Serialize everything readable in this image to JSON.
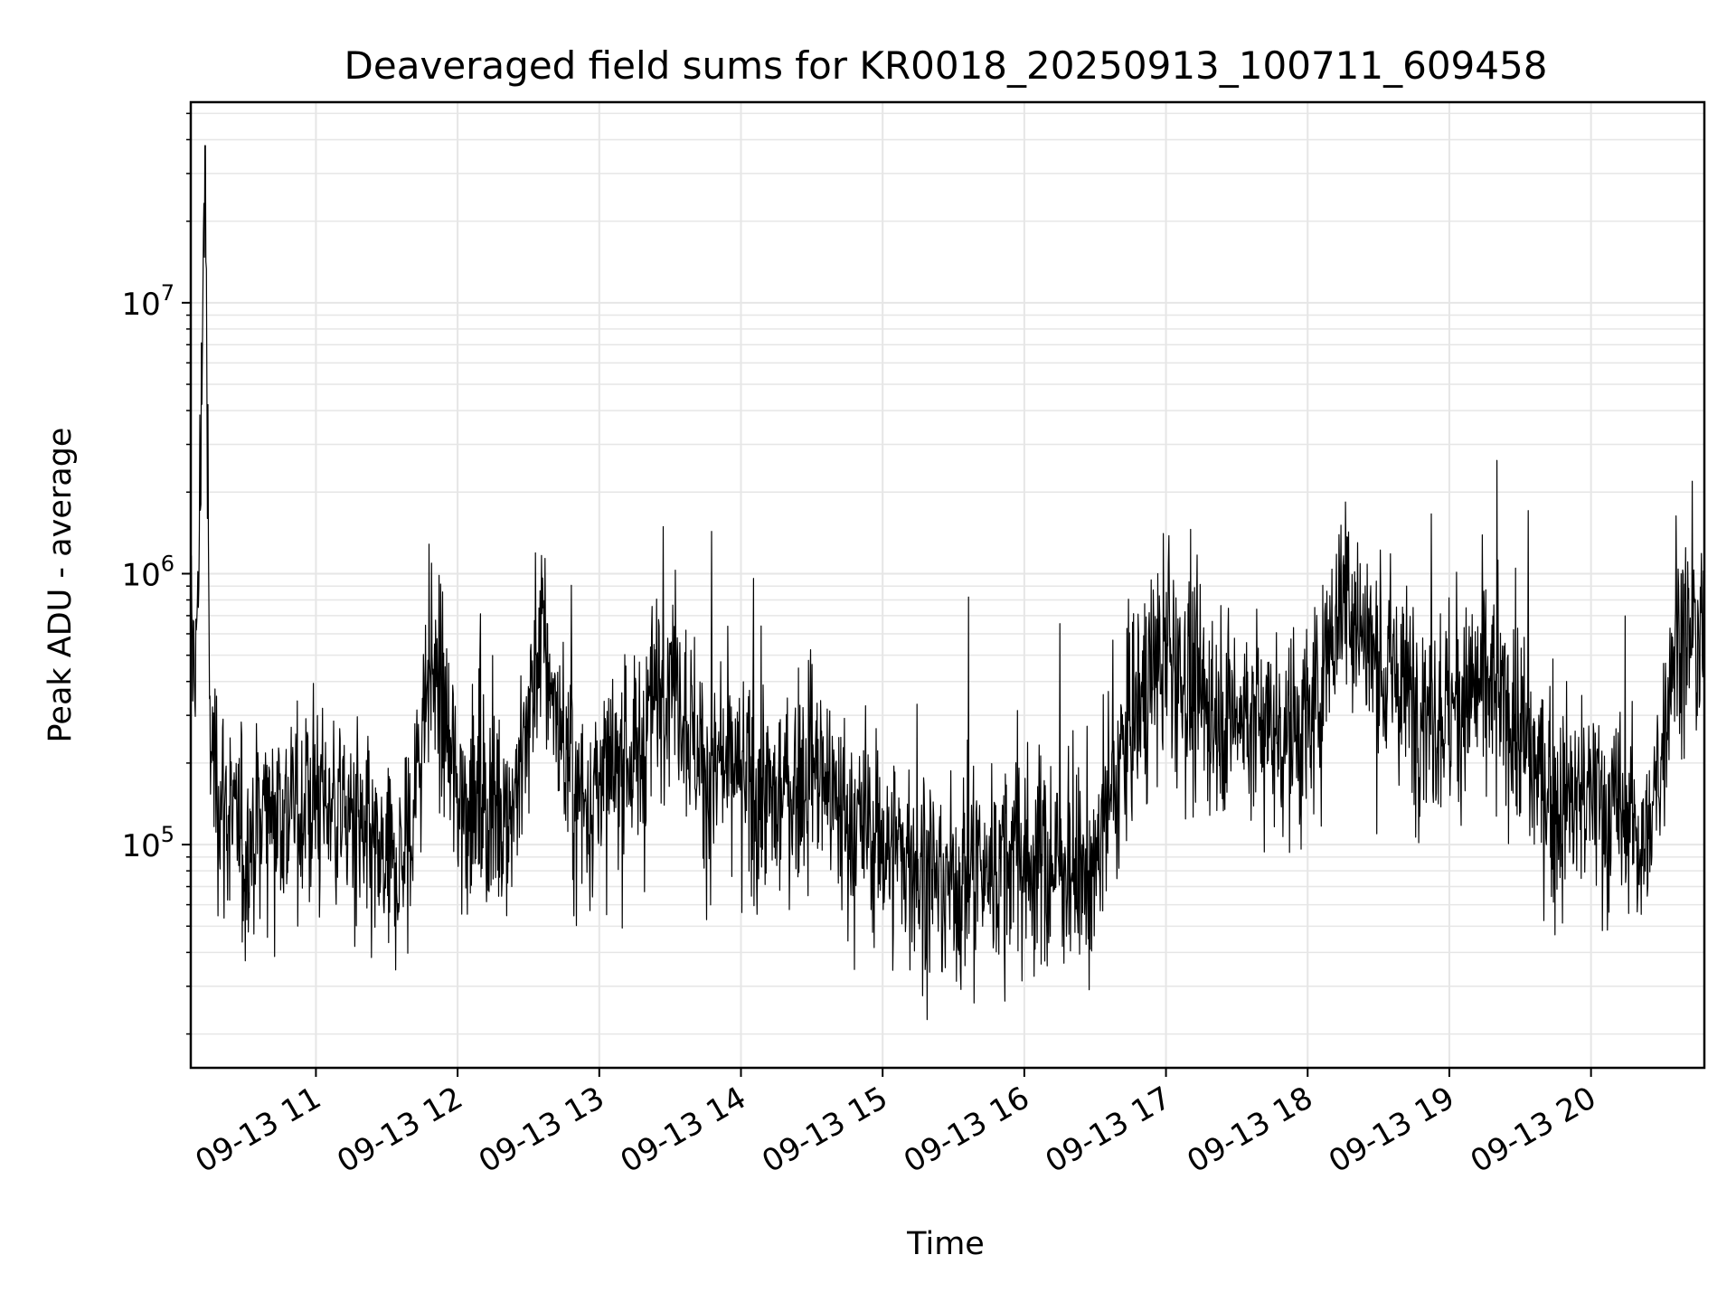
{
  "chart_data": {
    "type": "line",
    "title": "Deaveraged field sums for KR0018_20250913_100711_609458",
    "xlabel": "Time",
    "ylabel": "Peak ADU - average",
    "yscale": "log",
    "ylim": [
      15000,
      55000000
    ],
    "xlim": [
      "2025-09-13 10:07",
      "2025-09-13 20:48"
    ],
    "grid": "on (major and minor)",
    "legend": "none",
    "line_color": "#000000",
    "x_ticks": [
      "09-13 11",
      "09-13 12",
      "09-13 13",
      "09-13 14",
      "09-13 15",
      "09-13 16",
      "09-13 17",
      "09-13 18",
      "09-13 19",
      "09-13 20"
    ],
    "y_ticks": [
      {
        "value": 100000,
        "base": "10",
        "exp": "5"
      },
      {
        "value": 1000000,
        "base": "10",
        "exp": "6"
      },
      {
        "value": 10000000,
        "base": "10",
        "exp": "7"
      }
    ],
    "series": [
      {
        "x": [
          "2025-09-13 10:07",
          "2025-09-13 10:10",
          "2025-09-13 10:13",
          "2025-09-13 10:15",
          "2025-09-13 10:20",
          "2025-09-13 10:30",
          "2025-09-13 10:40",
          "2025-09-13 10:50",
          "2025-09-13 11:00",
          "2025-09-13 11:10",
          "2025-09-13 11:20",
          "2025-09-13 11:30",
          "2025-09-13 11:40",
          "2025-09-13 11:48",
          "2025-09-13 12:00",
          "2025-09-13 12:15",
          "2025-09-13 12:25",
          "2025-09-13 12:35",
          "2025-09-13 12:50",
          "2025-09-13 13:00",
          "2025-09-13 13:15",
          "2025-09-13 13:30",
          "2025-09-13 13:45",
          "2025-09-13 14:00",
          "2025-09-13 14:15",
          "2025-09-13 14:30",
          "2025-09-13 14:45",
          "2025-09-13 14:55",
          "2025-09-13 15:10",
          "2025-09-13 15:25",
          "2025-09-13 15:40",
          "2025-09-13 15:55",
          "2025-09-13 16:10",
          "2025-09-13 16:30",
          "2025-09-13 16:45",
          "2025-09-13 17:00",
          "2025-09-13 17:15",
          "2025-09-13 17:30",
          "2025-09-13 17:45",
          "2025-09-13 18:00",
          "2025-09-13 18:15",
          "2025-09-13 18:30",
          "2025-09-13 18:45",
          "2025-09-13 19:00",
          "2025-09-13 19:15",
          "2025-09-13 19:30",
          "2025-09-13 19:45",
          "2025-09-13 20:00",
          "2025-09-13 20:15",
          "2025-09-13 20:25",
          "2025-09-13 20:35",
          "2025-09-13 20:48"
        ],
        "y": [
          500000,
          600000,
          38000000,
          250000,
          150000,
          90000,
          150000,
          130000,
          150000,
          140000,
          100000,
          70000,
          100000,
          500000,
          150000,
          140000,
          150000,
          600000,
          140000,
          160000,
          200000,
          500000,
          180000,
          170000,
          140000,
          200000,
          120000,
          110000,
          90000,
          70000,
          80000,
          90000,
          85000,
          80000,
          300000,
          500000,
          350000,
          300000,
          280000,
          250000,
          900000,
          450000,
          350000,
          300000,
          400000,
          250000,
          140000,
          150000,
          120000,
          100000,
          600000,
          550000
        ]
      }
    ]
  }
}
